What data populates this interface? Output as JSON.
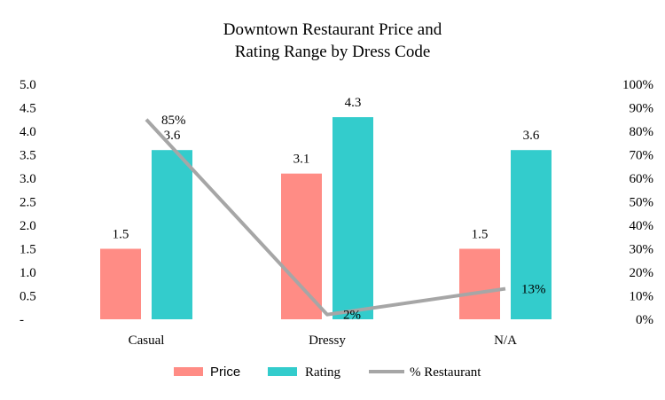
{
  "chart_data": {
    "type": "bar",
    "title_lines": [
      "Downtown Restaurant Price and",
      "Rating Range by Dress Code"
    ],
    "categories": [
      "Casual",
      "Dressy",
      "N/A"
    ],
    "series": [
      {
        "name": "Price",
        "values": [
          1.5,
          3.1,
          1.5
        ],
        "labels": [
          "1.5",
          "3.1",
          "1.5"
        ],
        "color": "#FF8C85",
        "axis": "left"
      },
      {
        "name": "Rating",
        "values": [
          3.6,
          4.3,
          3.6
        ],
        "labels": [
          "3.6",
          "4.3",
          "3.6"
        ],
        "color": "#33CCCC",
        "axis": "left"
      }
    ],
    "line_series": {
      "name": "% Restaurant",
      "values": [
        0.85,
        0.02,
        0.13
      ],
      "labels": [
        "85%",
        "2%",
        "13%"
      ],
      "color": "#A6A6A6",
      "axis": "right"
    },
    "y_left": {
      "ylim": [
        0,
        5
      ],
      "ticks": [
        "-",
        "0.5",
        "1.0",
        "1.5",
        "2.0",
        "2.5",
        "3.0",
        "3.5",
        "4.0",
        "4.5",
        "5.0"
      ]
    },
    "y_right": {
      "ylim": [
        0,
        1
      ],
      "ticks": [
        "0%",
        "10%",
        "20%",
        "30%",
        "40%",
        "50%",
        "60%",
        "70%",
        "80%",
        "90%",
        "100%"
      ]
    },
    "legend": {
      "position": "bottom",
      "items": [
        "Price",
        "Rating",
        "% Restaurant"
      ]
    },
    "grid": false
  }
}
